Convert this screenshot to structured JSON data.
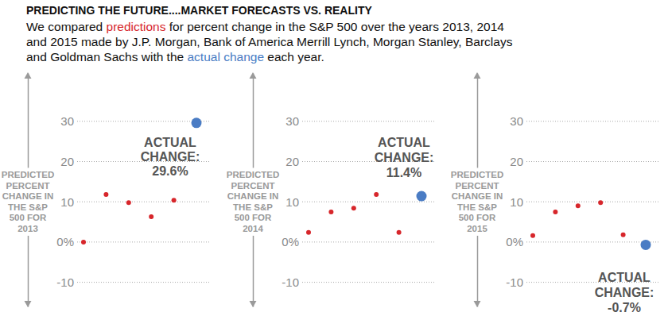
{
  "header": {
    "title": "PREDICTING THE FUTURE....MARKET FORECASTS VS. REALITY",
    "subtitle": [
      {
        "text": "We compared "
      },
      {
        "text": "predictions",
        "color": "#d7262b"
      },
      {
        "text": " for percent change in the S&P 500 over the years 2013, 2014 and 2015 made by J.P. Morgan, Bank of America Merrill Lynch, Morgan Stanley, Barclays and Goldman Sachs with the "
      },
      {
        "text": "actual change",
        "color": "#4a7cc4"
      },
      {
        "text": " each year."
      }
    ]
  },
  "chart_data": [
    {
      "type": "scatter",
      "ylabel": [
        "PREDICTED",
        "PERCENT",
        "CHANGE IN",
        "THE S&P",
        "500 FOR",
        "2013"
      ],
      "categories": [
        null,
        null,
        null,
        null,
        null,
        null
      ],
      "series": [
        {
          "color": "#d7262b",
          "marker": "circle",
          "values": [
            0,
            11.8,
            9.8,
            6.3,
            10.4,
            null
          ]
        },
        {
          "color": "#4a7cc4",
          "marker": "circle",
          "values": [
            null,
            null,
            null,
            null,
            null,
            29.6
          ]
        }
      ],
      "annotation": [
        "ACTUAL",
        "CHANGE:",
        "29.6%"
      ],
      "ylim": [
        -16,
        42
      ],
      "yticks": [
        30,
        20,
        10,
        {
          "value": 0,
          "label": "0%"
        },
        -10
      ],
      "grid": true,
      "tick_labels": "y"
    },
    {
      "type": "scatter",
      "ylabel": [
        "PREDICTED",
        "PERCENT",
        "CHANGE IN",
        "THE S&P",
        "500 FOR",
        "2014"
      ],
      "categories": [
        null,
        null,
        null,
        null,
        null,
        null
      ],
      "series": [
        {
          "color": "#d7262b",
          "marker": "circle",
          "values": [
            2.4,
            7.5,
            8.4,
            11.8,
            2.4,
            null
          ]
        },
        {
          "color": "#4a7cc4",
          "marker": "circle",
          "values": [
            null,
            null,
            null,
            null,
            null,
            11.4
          ]
        }
      ],
      "annotation": [
        "ACTUAL",
        "CHANGE:",
        "11.4%"
      ],
      "ylim": [
        -16,
        42
      ],
      "yticks": [
        30,
        20,
        10,
        {
          "value": 0,
          "label": "0%"
        },
        -10
      ],
      "grid": true,
      "tick_labels": "y"
    },
    {
      "type": "scatter",
      "ylabel": [
        "PREDICTED",
        "PERCENT",
        "CHANGE IN",
        "THE S&P",
        "500 FOR",
        "2015"
      ],
      "categories": [
        null,
        null,
        null,
        null,
        null,
        null
      ],
      "series": [
        {
          "color": "#d7262b",
          "marker": "circle",
          "values": [
            1.6,
            7.5,
            9.0,
            9.8,
            1.8,
            null
          ]
        },
        {
          "color": "#4a7cc4",
          "marker": "circle",
          "values": [
            null,
            null,
            null,
            null,
            null,
            -0.7
          ]
        }
      ],
      "annotation": [
        "ACTUAL",
        "CHANGE:",
        "-0.7%"
      ],
      "ylim": [
        -16,
        42
      ],
      "yticks": [
        30,
        20,
        10,
        {
          "value": 0,
          "label": "0%"
        },
        -10
      ],
      "grid": true,
      "tick_labels": "y"
    }
  ]
}
